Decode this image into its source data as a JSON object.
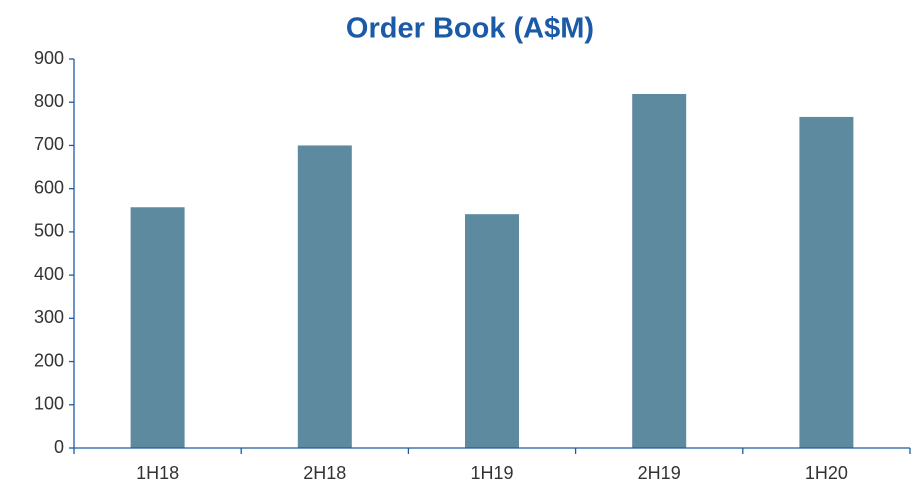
{
  "chart_data": {
    "type": "bar",
    "title": "Order Book (A$M)",
    "categories": [
      "1H18",
      "2H18",
      "1H19",
      "2H19",
      "1H20"
    ],
    "values": [
      557,
      700,
      541,
      819,
      766
    ],
    "color": "#5e8aa0",
    "ylim": [
      0,
      900
    ],
    "yticks": [
      0,
      100,
      200,
      300,
      400,
      500,
      600,
      700,
      800,
      900
    ],
    "grid": false
  }
}
